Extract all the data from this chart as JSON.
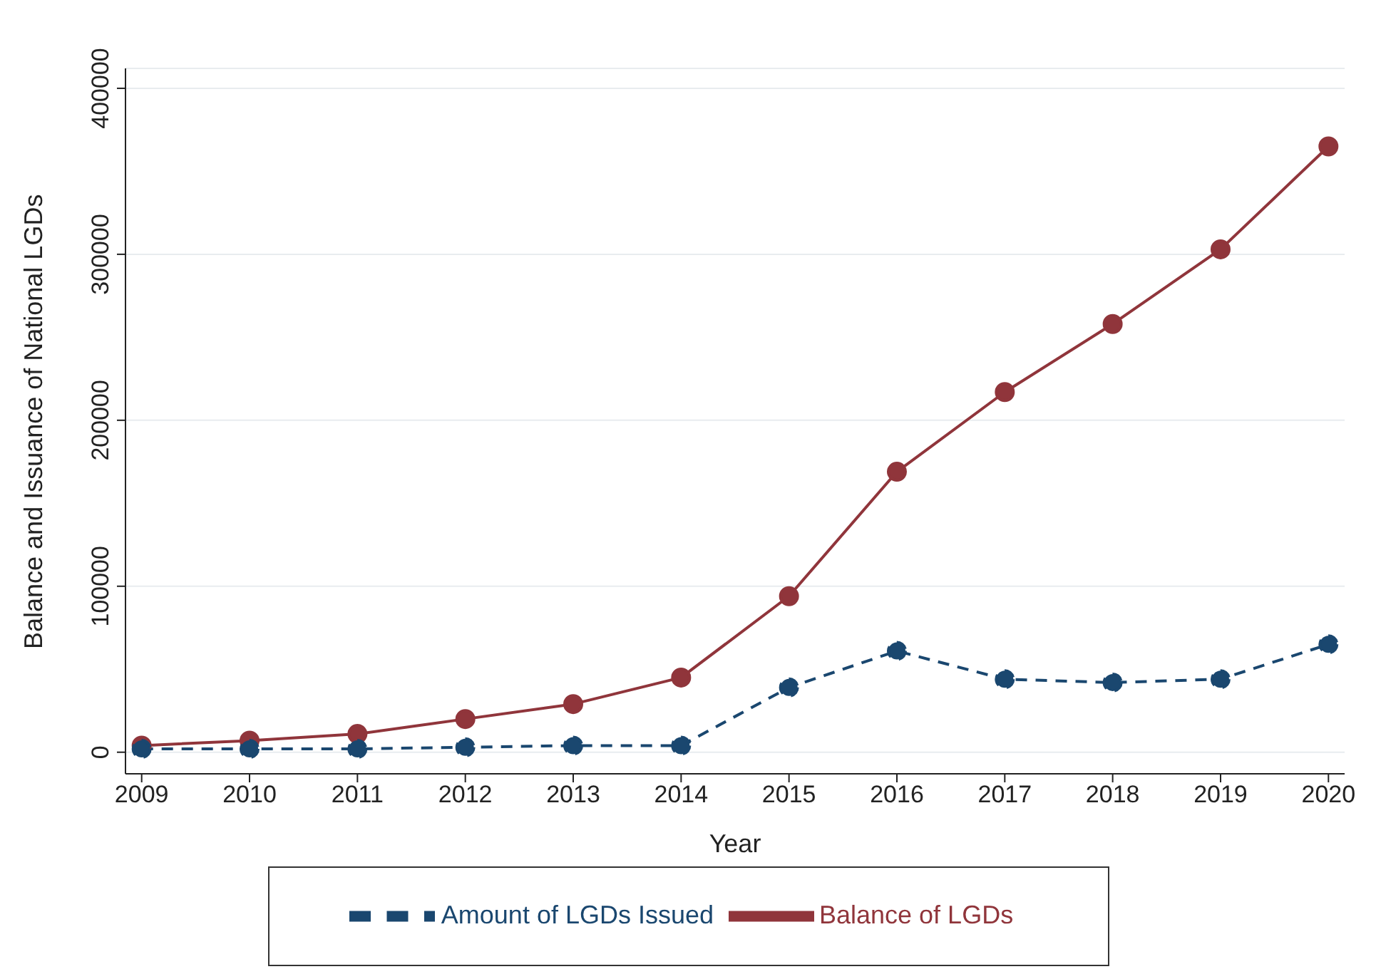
{
  "chart_data": {
    "type": "line",
    "xlabel": "Year",
    "ylabel": "Balance and Issuance of National LGDs",
    "x": [
      2009,
      2010,
      2011,
      2012,
      2013,
      2014,
      2015,
      2016,
      2017,
      2018,
      2019,
      2020
    ],
    "series": [
      {
        "name": "Amount of LGDs Issued",
        "color": "#1a476f",
        "line_style": "dashed",
        "values": [
          2000,
          2000,
          2000,
          3000,
          4000,
          4000,
          39000,
          61000,
          44000,
          42000,
          44000,
          65000
        ]
      },
      {
        "name": "Balance of LGDs",
        "color": "#90353b",
        "line_style": "solid",
        "values": [
          4000,
          7000,
          11000,
          20000,
          29000,
          45000,
          94000,
          169000,
          217000,
          258000,
          303000,
          365000
        ]
      }
    ],
    "xlim": [
      2008.85,
      2020.15
    ],
    "xticks": [
      2009,
      2010,
      2011,
      2012,
      2013,
      2014,
      2015,
      2016,
      2017,
      2018,
      2019,
      2020
    ],
    "ylim": [
      -13000,
      412000
    ],
    "yticks": [
      0,
      100000,
      200000,
      300000,
      400000
    ],
    "grid": "y",
    "legend": "bottom",
    "marker": "circle"
  }
}
